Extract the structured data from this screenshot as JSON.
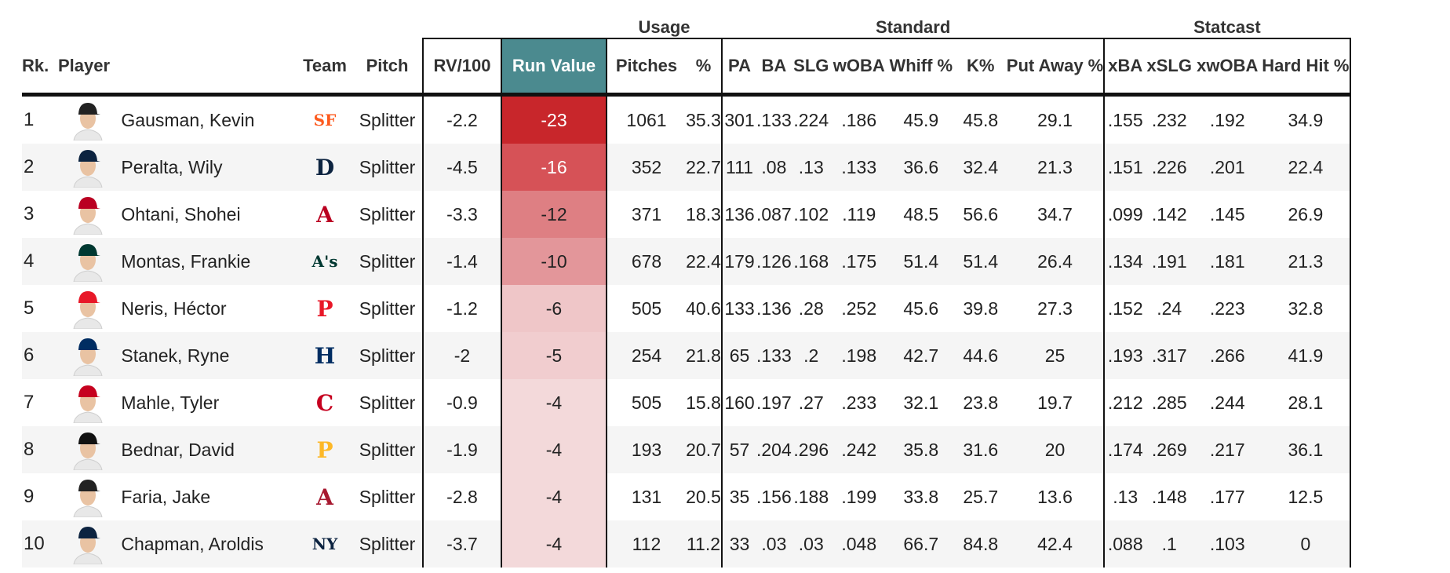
{
  "group_headers": {
    "usage": "Usage",
    "standard": "Standard",
    "statcast": "Statcast"
  },
  "columns": {
    "rk": "Rk.",
    "player": "Player",
    "team": "Team",
    "pitch": "Pitch",
    "rv100": "RV/100",
    "run_value": "Run Value",
    "pitches": "Pitches",
    "pct": "%",
    "pa": "PA",
    "ba": "BA",
    "slg": "SLG",
    "woba": "wOBA",
    "whiff": "Whiff %",
    "k": "K%",
    "putaway": "Put Away %",
    "xba": "xBA",
    "xslg": "xSLG",
    "xwoba": "xwOBA",
    "hardhit": "Hard Hit %"
  },
  "colors": {
    "run_value_header": "#4b8a8f"
  },
  "rows": [
    {
      "rk": "1",
      "player": "Gausman, Kevin",
      "team_icon": "giants-logo-icon",
      "logo_text": "SF",
      "logo_color": "#fd5a1e",
      "cap": "#222",
      "pitch": "Splitter",
      "rv100": "-2.2",
      "rv": "-23",
      "rv_color": "#c8262b",
      "rv_text": "#ffffff",
      "pitches": "1061",
      "pct": "35.3",
      "pa": "301",
      "ba": ".133",
      "slg": ".224",
      "woba": ".186",
      "whiff": "45.9",
      "k": "45.8",
      "putaway": "29.1",
      "xba": ".155",
      "xslg": ".232",
      "xwoba": ".192",
      "hardhit": "34.9"
    },
    {
      "rk": "2",
      "player": "Peralta, Wily",
      "team_icon": "tigers-logo-icon",
      "logo_text": "D",
      "logo_color": "#0c2340",
      "cap": "#0c2340",
      "pitch": "Splitter",
      "rv100": "-4.5",
      "rv": "-16",
      "rv_color": "#d65257",
      "rv_text": "#ffffff",
      "pitches": "352",
      "pct": "22.7",
      "pa": "111",
      "ba": ".08",
      "slg": ".13",
      "woba": ".133",
      "whiff": "36.6",
      "k": "32.4",
      "putaway": "21.3",
      "xba": ".151",
      "xslg": ".226",
      "xwoba": ".201",
      "hardhit": "22.4"
    },
    {
      "rk": "3",
      "player": "Ohtani, Shohei",
      "team_icon": "angels-logo-icon",
      "logo_text": "A",
      "logo_color": "#ba0021",
      "cap": "#ba0021",
      "pitch": "Splitter",
      "rv100": "-3.3",
      "rv": "-12",
      "rv_color": "#de7f83",
      "rv_text": "#222222",
      "pitches": "371",
      "pct": "18.3",
      "pa": "136",
      "ba": ".087",
      "slg": ".102",
      "woba": ".119",
      "whiff": "48.5",
      "k": "56.6",
      "putaway": "34.7",
      "xba": ".099",
      "xslg": ".142",
      "xwoba": ".145",
      "hardhit": "26.9"
    },
    {
      "rk": "4",
      "player": "Montas, Frankie",
      "team_icon": "athletics-logo-icon",
      "logo_text": "A's",
      "logo_color": "#003831",
      "cap": "#003831",
      "pitch": "Splitter",
      "rv100": "-1.4",
      "rv": "-10",
      "rv_color": "#e3969a",
      "rv_text": "#222222",
      "pitches": "678",
      "pct": "22.4",
      "pa": "179",
      "ba": ".126",
      "slg": ".168",
      "woba": ".175",
      "whiff": "51.4",
      "k": "51.4",
      "putaway": "26.4",
      "xba": ".134",
      "xslg": ".191",
      "xwoba": ".181",
      "hardhit": "21.3"
    },
    {
      "rk": "5",
      "player": "Neris, Héctor",
      "team_icon": "phillies-logo-icon",
      "logo_text": "P",
      "logo_color": "#e81828",
      "cap": "#e81828",
      "pitch": "Splitter",
      "rv100": "-1.2",
      "rv": "-6",
      "rv_color": "#efc6c8",
      "rv_text": "#222222",
      "pitches": "505",
      "pct": "40.6",
      "pa": "133",
      "ba": ".136",
      "slg": ".28",
      "woba": ".252",
      "whiff": "45.6",
      "k": "39.8",
      "putaway": "27.3",
      "xba": ".152",
      "xslg": ".24",
      "xwoba": ".223",
      "hardhit": "32.8"
    },
    {
      "rk": "6",
      "player": "Stanek, Ryne",
      "team_icon": "astros-logo-icon",
      "logo_text": "H",
      "logo_color": "#002d62",
      "cap": "#002d62",
      "pitch": "Splitter",
      "rv100": "-2",
      "rv": "-5",
      "rv_color": "#f1cdcf",
      "rv_text": "#222222",
      "pitches": "254",
      "pct": "21.8",
      "pa": "65",
      "ba": ".133",
      "slg": ".2",
      "woba": ".198",
      "whiff": "42.7",
      "k": "44.6",
      "putaway": "25",
      "xba": ".193",
      "xslg": ".317",
      "xwoba": ".266",
      "hardhit": "41.9"
    },
    {
      "rk": "7",
      "player": "Mahle, Tyler",
      "team_icon": "reds-logo-icon",
      "logo_text": "C",
      "logo_color": "#c6011f",
      "cap": "#c6011f",
      "pitch": "Splitter",
      "rv100": "-0.9",
      "rv": "-4",
      "rv_color": "#f3d9da",
      "rv_text": "#222222",
      "pitches": "505",
      "pct": "15.8",
      "pa": "160",
      "ba": ".197",
      "slg": ".27",
      "woba": ".233",
      "whiff": "32.1",
      "k": "23.8",
      "putaway": "19.7",
      "xba": ".212",
      "xslg": ".285",
      "xwoba": ".244",
      "hardhit": "28.1"
    },
    {
      "rk": "8",
      "player": "Bednar, David",
      "team_icon": "pirates-logo-icon",
      "logo_text": "P",
      "logo_color": "#fdb827",
      "cap": "#111111",
      "pitch": "Splitter",
      "rv100": "-1.9",
      "rv": "-4",
      "rv_color": "#f3d9da",
      "rv_text": "#222222",
      "pitches": "193",
      "pct": "20.7",
      "pa": "57",
      "ba": ".204",
      "slg": ".296",
      "woba": ".242",
      "whiff": "35.8",
      "k": "31.6",
      "putaway": "20",
      "xba": ".174",
      "xslg": ".269",
      "xwoba": ".217",
      "hardhit": "36.1"
    },
    {
      "rk": "9",
      "player": "Faria, Jake",
      "team_icon": "diamondbacks-logo-icon",
      "logo_text": "A",
      "logo_color": "#a71930",
      "cap": "#222",
      "pitch": "Splitter",
      "rv100": "-2.8",
      "rv": "-4",
      "rv_color": "#f3d9da",
      "rv_text": "#222222",
      "pitches": "131",
      "pct": "20.5",
      "pa": "35",
      "ba": ".156",
      "slg": ".188",
      "woba": ".199",
      "whiff": "33.8",
      "k": "25.7",
      "putaway": "13.6",
      "xba": ".13",
      "xslg": ".148",
      "xwoba": ".177",
      "hardhit": "12.5"
    },
    {
      "rk": "10",
      "player": "Chapman, Aroldis",
      "team_icon": "yankees-logo-icon",
      "logo_text": "NY",
      "logo_color": "#0c2340",
      "cap": "#0c2340",
      "pitch": "Splitter",
      "rv100": "-3.7",
      "rv": "-4",
      "rv_color": "#f3d9da",
      "rv_text": "#222222",
      "pitches": "112",
      "pct": "11.2",
      "pa": "33",
      "ba": ".03",
      "slg": ".03",
      "woba": ".048",
      "whiff": "66.7",
      "k": "84.8",
      "putaway": "42.4",
      "xba": ".088",
      "xslg": ".1",
      "xwoba": ".103",
      "hardhit": "0"
    }
  ]
}
